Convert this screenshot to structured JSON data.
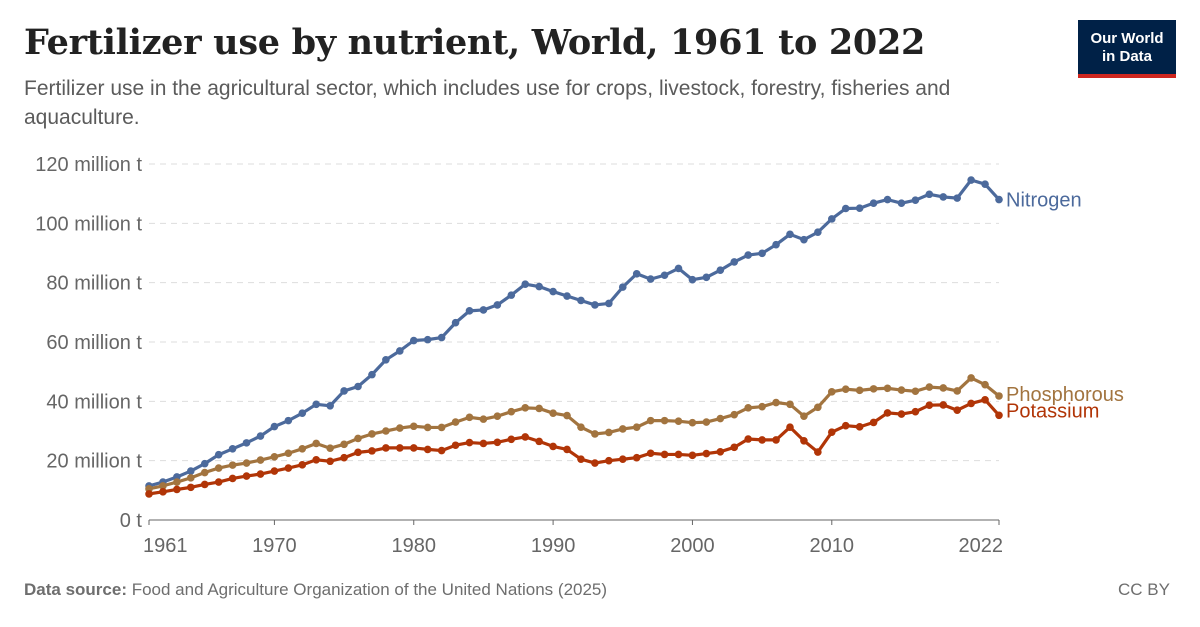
{
  "header": {
    "title": "Fertilizer use by nutrient, World, 1961 to 2022",
    "subtitle": "Fertilizer use in the agricultural sector, which includes use for crops, livestock, forestry, fisheries and aquaculture.",
    "logo_line1": "Our World",
    "logo_line2": "in Data"
  },
  "footer": {
    "source_label": "Data source:",
    "source_text": " Food and Agriculture Organization of the United Nations (2025)",
    "license": "CC BY"
  },
  "colors": {
    "Nitrogen": "#4c6a9c",
    "Phosphorous": "#a2743f",
    "Potassium": "#b13507",
    "grid": "#dddddd",
    "axis": "#666666"
  },
  "chart_data": {
    "type": "line",
    "title": "Fertilizer use by nutrient, World, 1961 to 2022",
    "xlabel": "",
    "ylabel": "",
    "xlim": [
      1961,
      2022
    ],
    "ylim": [
      0,
      120
    ],
    "y_unit": "million t",
    "x_ticks": [
      1961,
      1970,
      1980,
      1990,
      2000,
      2010,
      2022
    ],
    "y_ticks": [
      0,
      20,
      40,
      60,
      80,
      100,
      120
    ],
    "y_tick_labels": [
      "0 t",
      "20 million t",
      "40 million t",
      "60 million t",
      "80 million t",
      "100 million t",
      "120 million t"
    ],
    "grid": "horizontal dashed",
    "legend": "line-end labels",
    "x": [
      1961,
      1962,
      1963,
      1964,
      1965,
      1966,
      1967,
      1968,
      1969,
      1970,
      1971,
      1972,
      1973,
      1974,
      1975,
      1976,
      1977,
      1978,
      1979,
      1980,
      1981,
      1982,
      1983,
      1984,
      1985,
      1986,
      1987,
      1988,
      1989,
      1990,
      1991,
      1992,
      1993,
      1994,
      1995,
      1996,
      1997,
      1998,
      1999,
      2000,
      2001,
      2002,
      2003,
      2004,
      2005,
      2006,
      2007,
      2008,
      2009,
      2010,
      2011,
      2012,
      2013,
      2014,
      2015,
      2016,
      2017,
      2018,
      2019,
      2020,
      2021,
      2022
    ],
    "series": [
      {
        "name": "Nitrogen",
        "values": [
          11.5,
          12.8,
          14.5,
          16.5,
          19.0,
          22.0,
          24.0,
          26.0,
          28.3,
          31.5,
          33.5,
          36.0,
          39.0,
          38.5,
          43.5,
          45.0,
          49.0,
          54.0,
          57.0,
          60.5,
          60.8,
          61.5,
          66.5,
          70.5,
          70.8,
          72.5,
          75.8,
          79.5,
          78.7,
          77.0,
          75.5,
          74.0,
          72.5,
          73.0,
          78.5,
          83.0,
          81.2,
          82.5,
          84.8,
          81.0,
          81.8,
          84.2,
          87.0,
          89.3,
          89.9,
          92.8,
          96.3,
          94.5,
          97.0,
          101.5,
          105.0,
          105.1,
          106.8,
          108.0,
          106.8,
          107.8,
          109.8,
          108.9,
          108.5,
          114.6,
          113.2,
          108.0
        ]
      },
      {
        "name": "Phosphorous",
        "values": [
          10.5,
          11.5,
          12.8,
          14.2,
          16.0,
          17.5,
          18.5,
          19.2,
          20.2,
          21.3,
          22.5,
          24.0,
          25.8,
          24.2,
          25.5,
          27.5,
          29.0,
          30.0,
          31.0,
          31.6,
          31.2,
          31.2,
          33.0,
          34.6,
          34.0,
          35.0,
          36.5,
          37.8,
          37.6,
          36.0,
          35.2,
          31.3,
          29.0,
          29.5,
          30.7,
          31.3,
          33.5,
          33.5,
          33.3,
          32.8,
          33.0,
          34.2,
          35.5,
          37.8,
          38.2,
          39.6,
          39.0,
          35.0,
          38.0,
          43.2,
          44.1,
          43.7,
          44.2,
          44.4,
          43.8,
          43.4,
          44.8,
          44.5,
          43.5,
          47.9,
          45.6,
          41.8
        ]
      },
      {
        "name": "Potassium",
        "values": [
          8.8,
          9.5,
          10.3,
          11.0,
          12.0,
          12.8,
          14.0,
          14.8,
          15.5,
          16.5,
          17.5,
          18.6,
          20.3,
          19.8,
          21.0,
          22.8,
          23.3,
          24.3,
          24.3,
          24.3,
          23.8,
          23.4,
          25.2,
          26.1,
          25.8,
          26.2,
          27.2,
          28.0,
          26.5,
          24.8,
          23.8,
          20.5,
          19.2,
          20.0,
          20.5,
          21.0,
          22.5,
          22.1,
          22.1,
          21.8,
          22.4,
          23.0,
          24.5,
          27.3,
          27.0,
          27.0,
          31.3,
          26.7,
          22.9,
          29.6,
          31.8,
          31.4,
          32.9,
          36.1,
          35.7,
          36.5,
          38.7,
          38.8,
          37.0,
          39.3,
          40.5,
          35.3
        ]
      }
    ]
  }
}
